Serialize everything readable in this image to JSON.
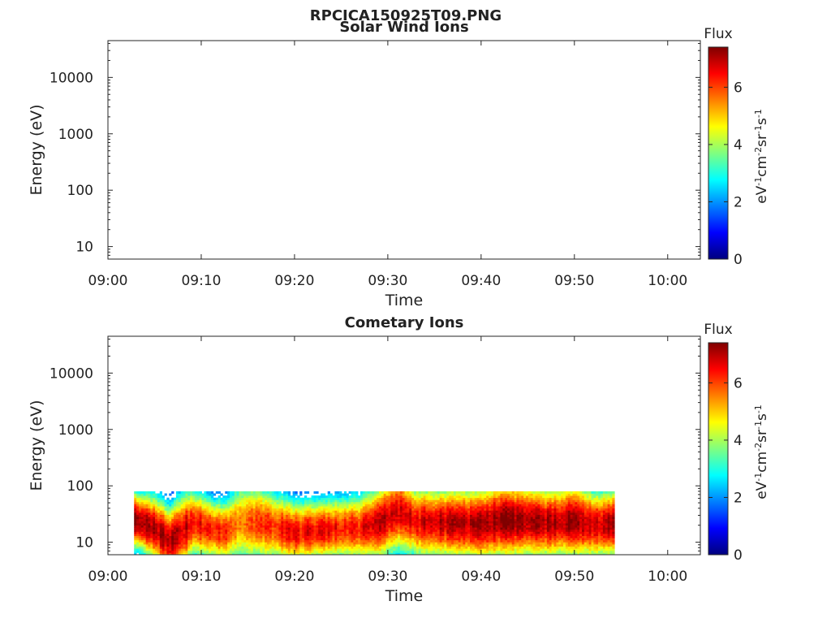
{
  "figure_title": "RPCICA150925T09.PNG",
  "chart_data": [
    {
      "type": "heatmap",
      "title": "Solar Wind Ions",
      "xlabel": "Time",
      "ylabel": "Energy (eV)",
      "yscale": "log",
      "x_ticks": [
        "09:00",
        "09:10",
        "09:20",
        "09:30",
        "09:40",
        "09:50",
        "10:00"
      ],
      "xlim_minutes": [
        0,
        63.5
      ],
      "ylim": [
        6,
        45000
      ],
      "y_ticks": [
        {
          "value": 10,
          "label": "10"
        },
        {
          "value": 100,
          "label": "100"
        },
        {
          "value": 1000,
          "label": "1000"
        },
        {
          "value": 10000,
          "label": "10000"
        }
      ],
      "colorbar": {
        "title": "Flux",
        "range": [
          0,
          7.4
        ],
        "ticks": [
          0,
          2,
          4,
          6
        ],
        "label": "eV-1cm-2sr-1s-1"
      },
      "data": "empty"
    },
    {
      "type": "heatmap",
      "title": "Cometary Ions",
      "xlabel": "Time",
      "ylabel": "Energy (eV)",
      "yscale": "log",
      "x_ticks": [
        "09:00",
        "09:10",
        "09:20",
        "09:30",
        "09:40",
        "09:50",
        "10:00"
      ],
      "xlim_minutes": [
        0,
        63.5
      ],
      "ylim": [
        6,
        45000
      ],
      "y_ticks": [
        {
          "value": 10,
          "label": "10"
        },
        {
          "value": 100,
          "label": "100"
        },
        {
          "value": 1000,
          "label": "1000"
        },
        {
          "value": 10000,
          "label": "10000"
        }
      ],
      "colorbar": {
        "title": "Flux",
        "range": [
          0,
          7.4
        ],
        "ticks": [
          0,
          2,
          4,
          6
        ],
        "label": "eV-1cm-2sr-1s-1"
      },
      "data_time_range_minutes": [
        2.8,
        54.3
      ],
      "energy_range_eV": [
        6,
        80
      ],
      "profile": [
        {
          "t": 2.8,
          "center": 25,
          "width": 1.6,
          "peak": 7.3
        },
        {
          "t": 5,
          "center": 17,
          "width": 1.9,
          "peak": 7.0
        },
        {
          "t": 6.5,
          "center": 10,
          "width": 2.0,
          "peak": 7.0
        },
        {
          "t": 8,
          "center": 16,
          "width": 2.2,
          "peak": 6.9
        },
        {
          "t": 9,
          "center": 22,
          "width": 1.9,
          "peak": 6.6
        },
        {
          "t": 11,
          "center": 17,
          "width": 1.8,
          "peak": 6.3
        },
        {
          "t": 12.5,
          "center": 15,
          "width": 1.8,
          "peak": 6.2
        },
        {
          "t": 14,
          "center": 22,
          "width": 2.3,
          "peak": 5.6
        },
        {
          "t": 16,
          "center": 22,
          "width": 2.2,
          "peak": 6.0
        },
        {
          "t": 18,
          "center": 18,
          "width": 2.0,
          "peak": 6.3
        },
        {
          "t": 20,
          "center": 15,
          "width": 1.8,
          "peak": 6.5
        },
        {
          "t": 24,
          "center": 17,
          "width": 1.8,
          "peak": 6.4
        },
        {
          "t": 27,
          "center": 18,
          "width": 1.9,
          "peak": 6.4
        },
        {
          "t": 29,
          "center": 22,
          "width": 2.2,
          "peak": 6.9
        },
        {
          "t": 31,
          "center": 35,
          "width": 2.3,
          "peak": 6.8
        },
        {
          "t": 33,
          "center": 23,
          "width": 2.1,
          "peak": 6.6
        },
        {
          "t": 36,
          "center": 22,
          "width": 2.1,
          "peak": 6.9
        },
        {
          "t": 40,
          "center": 21,
          "width": 2.2,
          "peak": 7.0
        },
        {
          "t": 42,
          "center": 25,
          "width": 2.3,
          "peak": 7.3
        },
        {
          "t": 45,
          "center": 24,
          "width": 2.2,
          "peak": 7.2
        },
        {
          "t": 47,
          "center": 22,
          "width": 2.1,
          "peak": 7.0
        },
        {
          "t": 50,
          "center": 24,
          "width": 2.2,
          "peak": 7.2
        },
        {
          "t": 52,
          "center": 20,
          "width": 2.0,
          "peak": 6.8
        },
        {
          "t": 54.3,
          "center": 22,
          "width": 2.0,
          "peak": 7.0
        }
      ]
    }
  ]
}
